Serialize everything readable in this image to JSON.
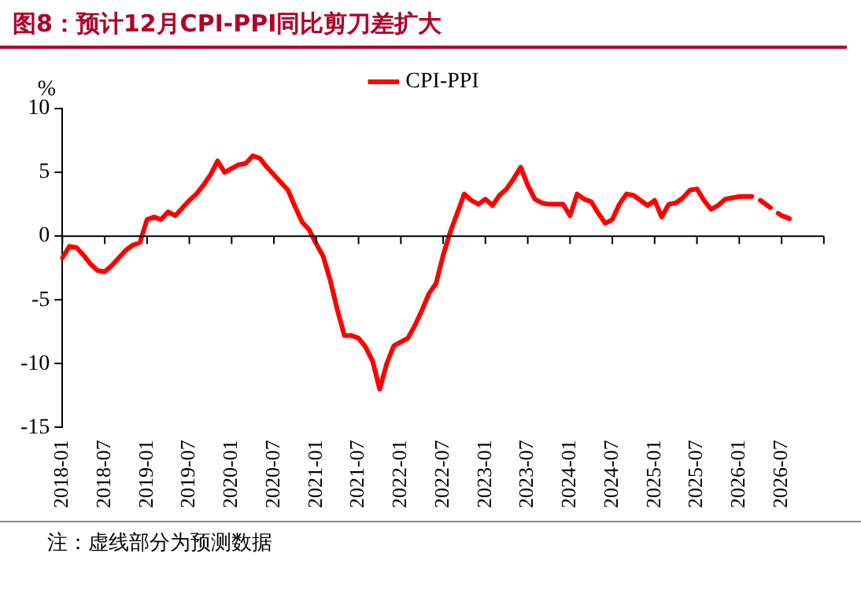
{
  "chart_data": {
    "type": "line",
    "title": "图8：预计12月CPI-PPI同比剪刀差扩大",
    "ylabel": "%",
    "categories": [
      "2018-01",
      null,
      null,
      null,
      null,
      null,
      "2018-07",
      null,
      null,
      null,
      null,
      null,
      "2019-01",
      null,
      null,
      null,
      null,
      null,
      "2019-07",
      null,
      null,
      null,
      null,
      null,
      "2020-01",
      null,
      null,
      null,
      null,
      null,
      "2020-07",
      null,
      null,
      null,
      null,
      null,
      "2021-01",
      null,
      null,
      null,
      null,
      null,
      "2021-07",
      null,
      null,
      null,
      null,
      null,
      "2022-01",
      null,
      null,
      null,
      null,
      null,
      "2022-07",
      null,
      null,
      null,
      null,
      null,
      "2023-01",
      null,
      null,
      null,
      null,
      null,
      "2023-07",
      null,
      null,
      null,
      null,
      null,
      "2024-01",
      null,
      null,
      null,
      null,
      null,
      "2024-07",
      null,
      null,
      null,
      null,
      null,
      "2025-01",
      null,
      null,
      null,
      null,
      null,
      "2025-07",
      null,
      null,
      null,
      null,
      null,
      "2026-01",
      null,
      null,
      null,
      null,
      null,
      "2026-07",
      null,
      null,
      null,
      null,
      null,
      null
    ],
    "series": [
      {
        "name": "CPI-PPI",
        "color": "#ff0000",
        "line_style": "solid",
        "values": [
          -1.7,
          -0.8,
          -0.9,
          -1.5,
          -2.2,
          -2.7,
          -2.8,
          -2.3,
          -1.7,
          -1.1,
          -0.7,
          -0.5,
          1.3,
          1.5,
          1.3,
          1.9,
          1.6,
          2.2,
          2.8,
          3.3,
          4.0,
          4.8,
          5.9,
          5.0,
          5.3,
          5.6,
          5.7,
          6.3,
          6.1,
          5.4,
          4.8,
          4.2,
          3.6,
          2.3,
          1.1,
          0.5,
          -0.6,
          -1.6,
          -3.5,
          -5.8,
          -7.8,
          -7.8,
          -8.0,
          -8.7,
          -9.8,
          -12.0,
          -10.0,
          -8.6,
          -8.3,
          -8.0,
          -7.0,
          -5.8,
          -4.5,
          -3.7,
          -1.5,
          0.3,
          1.8,
          3.3,
          2.8,
          2.5,
          2.9,
          2.4,
          3.2,
          3.7,
          4.5,
          5.4,
          4.0,
          2.9,
          2.6,
          2.5,
          2.5,
          2.5,
          1.6,
          3.3,
          2.9,
          2.7,
          1.8,
          1.0,
          1.3,
          2.5,
          3.3,
          3.2,
          2.8,
          2.4,
          2.8,
          1.5,
          2.5,
          2.6,
          3.0,
          3.6,
          3.7,
          2.8,
          2.1,
          2.4,
          2.9,
          3.0,
          3.1,
          null,
          null,
          null,
          null,
          null,
          null,
          null,
          null,
          null,
          null,
          null,
          null
        ]
      },
      {
        "color": "#ff0000",
        "line_style": "dashed",
        "values": [
          null,
          null,
          null,
          null,
          null,
          null,
          null,
          null,
          null,
          null,
          null,
          null,
          null,
          null,
          null,
          null,
          null,
          null,
          null,
          null,
          null,
          null,
          null,
          null,
          null,
          null,
          null,
          null,
          null,
          null,
          null,
          null,
          null,
          null,
          null,
          null,
          null,
          null,
          null,
          null,
          null,
          null,
          null,
          null,
          null,
          null,
          null,
          null,
          null,
          null,
          null,
          null,
          null,
          null,
          null,
          null,
          null,
          null,
          null,
          null,
          null,
          null,
          null,
          null,
          null,
          null,
          null,
          null,
          null,
          null,
          null,
          null,
          null,
          null,
          null,
          null,
          null,
          null,
          null,
          null,
          null,
          null,
          null,
          null,
          null,
          null,
          null,
          null,
          null,
          null,
          null,
          null,
          null,
          null,
          null,
          null,
          3.1,
          3.1,
          3.1,
          2.8,
          2.4,
          2.0,
          1.6,
          1.4,
          1.1,
          null,
          null,
          null,
          null
        ]
      }
    ],
    "ylim": [
      -15,
      10
    ],
    "yticks": [
      -15,
      -10,
      -5,
      0,
      5,
      10
    ],
    "grid": false,
    "legend": "top",
    "marker": "none",
    "ref_lines": [
      {
        "axis": "y",
        "value": 0
      }
    ],
    "annotations": [
      "注：虚线部分为预测数据"
    ]
  }
}
